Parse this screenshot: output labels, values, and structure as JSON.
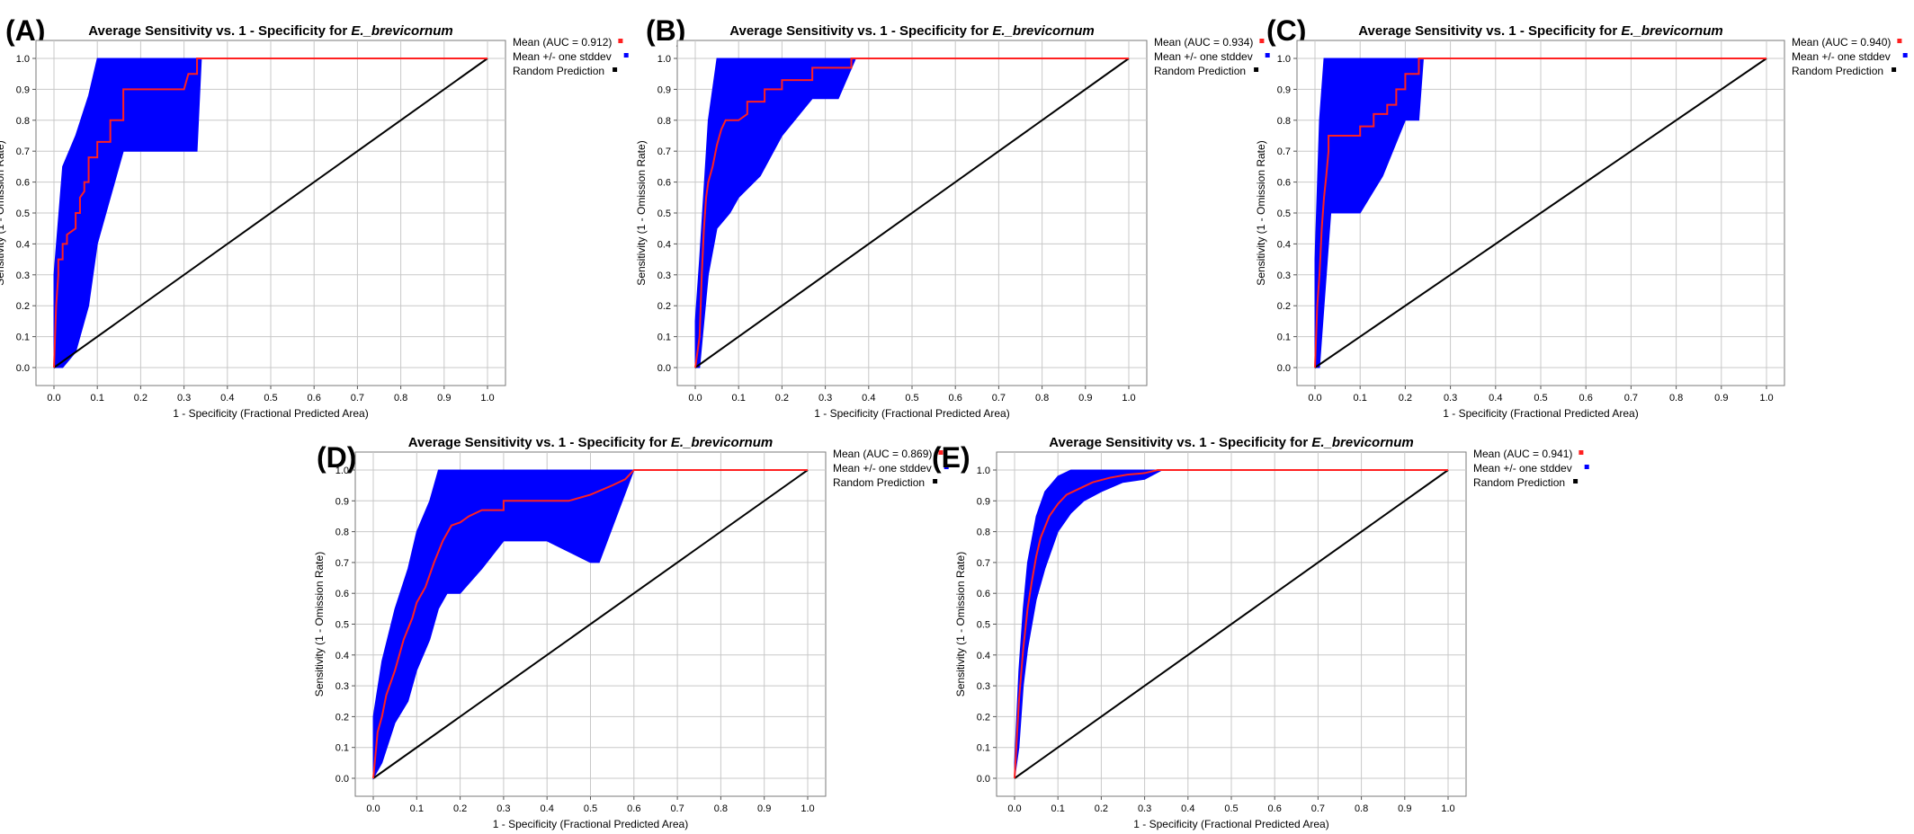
{
  "figure": {
    "background": "#ffffff",
    "colors": {
      "mean": "#ff2020",
      "band": "#0000ff",
      "random": "#000000",
      "grid": "#c8c8c8"
    },
    "panels": [
      {
        "panel_label": "(A)",
        "title_prefix": "Average Sensitivity vs. 1 - Specificity for ",
        "species": "E._brevicornum"
      },
      {
        "panel_label": "(B)",
        "title_prefix": "Average Sensitivity vs. 1 - Specificity for ",
        "species": "E._brevicornum"
      },
      {
        "panel_label": "(C)",
        "title_prefix": "Average Sensitivity vs. 1 - Specificity for ",
        "species": "E._brevicornum"
      },
      {
        "panel_label": "(D)",
        "title_prefix": "Average Sensitivity vs. 1 - Specificity for ",
        "species": "E._brevicornum"
      },
      {
        "panel_label": "(E)",
        "title_prefix": "Average Sensitivity vs. 1 - Specificity for ",
        "species": "E._brevicornum"
      }
    ]
  },
  "chart_data": [
    {
      "type": "line",
      "title": "Average Sensitivity vs. 1 - Specificity for E._brevicornum",
      "xlabel": "1 - Specificity (Fractional Predicted Area)",
      "ylabel": "Sensitivity (1 - Omission Rate)",
      "xlim": [
        0,
        1
      ],
      "ylim": [
        0,
        1
      ],
      "xticks": [
        "0.0",
        "0.1",
        "0.2",
        "0.3",
        "0.4",
        "0.5",
        "0.6",
        "0.7",
        "0.8",
        "0.9",
        "1.0"
      ],
      "yticks": [
        "0.0",
        "0.1",
        "0.2",
        "0.3",
        "0.4",
        "0.5",
        "0.6",
        "0.7",
        "0.8",
        "0.9",
        "1.0"
      ],
      "grid": true,
      "legend_position": "right",
      "series": [
        {
          "name": "Mean (AUC = 0.912)",
          "color": "#ff2020",
          "x": [
            0,
            0.005,
            0.01,
            0.01,
            0.02,
            0.02,
            0.03,
            0.03,
            0.05,
            0.05,
            0.06,
            0.06,
            0.07,
            0.07,
            0.08,
            0.08,
            0.1,
            0.1,
            0.13,
            0.13,
            0.16,
            0.16,
            0.3,
            0.31,
            0.33,
            0.33,
            1.0
          ],
          "y": [
            0,
            0.2,
            0.3,
            0.35,
            0.35,
            0.4,
            0.4,
            0.43,
            0.45,
            0.5,
            0.5,
            0.55,
            0.57,
            0.6,
            0.6,
            0.68,
            0.68,
            0.73,
            0.73,
            0.8,
            0.8,
            0.9,
            0.9,
            0.95,
            0.95,
            1.0,
            1.0
          ]
        },
        {
          "name": "Mean +/- one stddev",
          "color": "#0000ff",
          "x": [
            0,
            0.02,
            0.05,
            0.08,
            0.1,
            0.13,
            0.16,
            0.2,
            0.25,
            0.3,
            0.33,
            0.34,
            1.0
          ],
          "upper": [
            0.3,
            0.65,
            0.75,
            0.88,
            1.0,
            1.0,
            1.0,
            1.0,
            1.0,
            1.0,
            1.0,
            1.0,
            1.0
          ],
          "lower": [
            0.0,
            0.0,
            0.05,
            0.2,
            0.4,
            0.55,
            0.7,
            0.7,
            0.7,
            0.7,
            0.7,
            1.0,
            1.0
          ]
        },
        {
          "name": "Random Prediction",
          "color": "#000000",
          "x": [
            0,
            1
          ],
          "y": [
            0,
            1
          ]
        }
      ]
    },
    {
      "type": "line",
      "title": "Average Sensitivity vs. 1 - Specificity for E._brevicornum",
      "xlabel": "1 - Specificity (Fractional Predicted Area)",
      "ylabel": "Sensitivity (1 - Omission Rate)",
      "xlim": [
        0,
        1
      ],
      "ylim": [
        0,
        1
      ],
      "xticks": [
        "0.0",
        "0.1",
        "0.2",
        "0.3",
        "0.4",
        "0.5",
        "0.6",
        "0.7",
        "0.8",
        "0.9",
        "1.0"
      ],
      "yticks": [
        "0.0",
        "0.1",
        "0.2",
        "0.3",
        "0.4",
        "0.5",
        "0.6",
        "0.7",
        "0.8",
        "0.9",
        "1.0"
      ],
      "grid": true,
      "legend_position": "right",
      "series": [
        {
          "name": "Mean (AUC = 0.934)",
          "color": "#ff2020",
          "x": [
            0,
            0.01,
            0.015,
            0.02,
            0.025,
            0.03,
            0.04,
            0.05,
            0.06,
            0.07,
            0.08,
            0.1,
            0.12,
            0.12,
            0.16,
            0.16,
            0.2,
            0.2,
            0.27,
            0.27,
            0.36,
            0.36,
            1.0
          ],
          "y": [
            0,
            0.1,
            0.3,
            0.45,
            0.55,
            0.6,
            0.65,
            0.72,
            0.77,
            0.8,
            0.8,
            0.8,
            0.82,
            0.86,
            0.86,
            0.9,
            0.9,
            0.93,
            0.93,
            0.97,
            0.97,
            1.0,
            1.0
          ]
        },
        {
          "name": "Mean +/- one stddev",
          "color": "#0000ff",
          "x": [
            0,
            0.01,
            0.03,
            0.05,
            0.08,
            0.1,
            0.15,
            0.2,
            0.27,
            0.33,
            0.37,
            1.0
          ],
          "upper": [
            0.15,
            0.35,
            0.8,
            1.0,
            1.0,
            1.0,
            1.0,
            1.0,
            1.0,
            1.0,
            1.0,
            1.0
          ],
          "lower": [
            0.0,
            0.0,
            0.3,
            0.45,
            0.5,
            0.55,
            0.62,
            0.75,
            0.87,
            0.87,
            1.0,
            1.0
          ]
        },
        {
          "name": "Random Prediction",
          "color": "#000000",
          "x": [
            0,
            1
          ],
          "y": [
            0,
            1
          ]
        }
      ]
    },
    {
      "type": "line",
      "title": "Average Sensitivity vs. 1 - Specificity for E._brevicornum",
      "xlabel": "1 - Specificity (Fractional Predicted Area)",
      "ylabel": "Sensitivity (1 - Omission Rate)",
      "xlim": [
        0,
        1
      ],
      "ylim": [
        0,
        1
      ],
      "xticks": [
        "0.0",
        "0.1",
        "0.2",
        "0.3",
        "0.4",
        "0.5",
        "0.6",
        "0.7",
        "0.8",
        "0.9",
        "1.0"
      ],
      "yticks": [
        "0.0",
        "0.1",
        "0.2",
        "0.3",
        "0.4",
        "0.5",
        "0.6",
        "0.7",
        "0.8",
        "0.9",
        "1.0"
      ],
      "grid": true,
      "legend_position": "right",
      "series": [
        {
          "name": "Mean (AUC = 0.940)",
          "color": "#ff2020",
          "x": [
            0,
            0.005,
            0.01,
            0.015,
            0.02,
            0.025,
            0.03,
            0.03,
            0.1,
            0.1,
            0.13,
            0.13,
            0.16,
            0.16,
            0.18,
            0.18,
            0.2,
            0.2,
            0.23,
            0.23,
            0.24,
            1.0
          ],
          "y": [
            0,
            0.2,
            0.3,
            0.45,
            0.55,
            0.62,
            0.7,
            0.75,
            0.75,
            0.78,
            0.78,
            0.82,
            0.82,
            0.85,
            0.85,
            0.9,
            0.9,
            0.95,
            0.95,
            1.0,
            1.0,
            1.0
          ]
        },
        {
          "name": "Mean +/- one stddev",
          "color": "#0000ff",
          "x": [
            0,
            0.01,
            0.02,
            0.035,
            0.05,
            0.1,
            0.15,
            0.2,
            0.23,
            0.24,
            1.0
          ],
          "upper": [
            0.35,
            0.8,
            1.0,
            1.0,
            1.0,
            1.0,
            1.0,
            1.0,
            1.0,
            1.0,
            1.0
          ],
          "lower": [
            0.0,
            0.0,
            0.2,
            0.5,
            0.5,
            0.5,
            0.62,
            0.8,
            0.8,
            1.0,
            1.0
          ]
        },
        {
          "name": "Random Prediction",
          "color": "#000000",
          "x": [
            0,
            1
          ],
          "y": [
            0,
            1
          ]
        }
      ]
    },
    {
      "type": "line",
      "title": "Average Sensitivity vs. 1 - Specificity for E._brevicornum",
      "xlabel": "1 - Specificity (Fractional Predicted Area)",
      "ylabel": "Sensitivity (1 - Omission Rate)",
      "xlim": [
        0,
        1
      ],
      "ylim": [
        0,
        1
      ],
      "xticks": [
        "0.0",
        "0.1",
        "0.2",
        "0.3",
        "0.4",
        "0.5",
        "0.6",
        "0.7",
        "0.8",
        "0.9",
        "1.0"
      ],
      "yticks": [
        "0.0",
        "0.1",
        "0.2",
        "0.3",
        "0.4",
        "0.5",
        "0.6",
        "0.7",
        "0.8",
        "0.9",
        "1.0"
      ],
      "grid": true,
      "legend_position": "right",
      "series": [
        {
          "name": "Mean (AUC = 0.869)",
          "color": "#ff2020",
          "x": [
            0,
            0.01,
            0.02,
            0.03,
            0.05,
            0.07,
            0.09,
            0.1,
            0.12,
            0.14,
            0.16,
            0.18,
            0.2,
            0.22,
            0.25,
            0.3,
            0.3,
            0.45,
            0.5,
            0.55,
            0.58,
            0.6,
            1.0
          ],
          "y": [
            0,
            0.15,
            0.2,
            0.27,
            0.35,
            0.45,
            0.52,
            0.57,
            0.62,
            0.7,
            0.77,
            0.82,
            0.83,
            0.85,
            0.87,
            0.87,
            0.9,
            0.9,
            0.92,
            0.95,
            0.97,
            1.0,
            1.0
          ]
        },
        {
          "name": "Mean +/- one stddev",
          "color": "#0000ff",
          "x": [
            0,
            0.02,
            0.05,
            0.08,
            0.1,
            0.13,
            0.15,
            0.17,
            0.2,
            0.25,
            0.3,
            0.4,
            0.5,
            0.52,
            0.6,
            1.0
          ],
          "upper": [
            0.2,
            0.38,
            0.55,
            0.68,
            0.8,
            0.9,
            1.0,
            1.0,
            1.0,
            1.0,
            1.0,
            1.0,
            1.0,
            1.0,
            1.0,
            1.0
          ],
          "lower": [
            0.0,
            0.05,
            0.18,
            0.25,
            0.35,
            0.45,
            0.55,
            0.6,
            0.6,
            0.68,
            0.77,
            0.77,
            0.7,
            0.7,
            1.0,
            1.0
          ]
        },
        {
          "name": "Random Prediction",
          "color": "#000000",
          "x": [
            0,
            1
          ],
          "y": [
            0,
            1
          ]
        }
      ]
    },
    {
      "type": "line",
      "title": "Average Sensitivity vs. 1 - Specificity for E._brevicornum",
      "xlabel": "1 - Specificity (Fractional Predicted Area)",
      "ylabel": "Sensitivity (1 - Omission Rate)",
      "xlim": [
        0,
        1
      ],
      "ylim": [
        0,
        1
      ],
      "xticks": [
        "0.0",
        "0.1",
        "0.2",
        "0.3",
        "0.4",
        "0.5",
        "0.6",
        "0.7",
        "0.8",
        "0.9",
        "1.0"
      ],
      "yticks": [
        "0.0",
        "0.1",
        "0.2",
        "0.3",
        "0.4",
        "0.5",
        "0.6",
        "0.7",
        "0.8",
        "0.9",
        "1.0"
      ],
      "grid": true,
      "legend_position": "right",
      "series": [
        {
          "name": "Mean (AUC = 0.941)",
          "color": "#ff2020",
          "x": [
            0,
            0.01,
            0.02,
            0.03,
            0.04,
            0.05,
            0.06,
            0.08,
            0.1,
            0.12,
            0.15,
            0.18,
            0.22,
            0.26,
            0.3,
            0.33,
            1.0
          ],
          "y": [
            0,
            0.25,
            0.42,
            0.55,
            0.64,
            0.72,
            0.78,
            0.85,
            0.89,
            0.92,
            0.94,
            0.96,
            0.975,
            0.985,
            0.99,
            1.0,
            1.0
          ]
        },
        {
          "name": "Mean +/- one stddev",
          "color": "#0000ff",
          "x": [
            0,
            0.01,
            0.02,
            0.03,
            0.05,
            0.07,
            0.1,
            0.13,
            0.16,
            0.2,
            0.25,
            0.3,
            0.34,
            1.0
          ],
          "upper": [
            0.05,
            0.35,
            0.55,
            0.7,
            0.85,
            0.93,
            0.98,
            1.0,
            1.0,
            1.0,
            1.0,
            1.0,
            1.0,
            1.0
          ],
          "lower": [
            0.0,
            0.1,
            0.3,
            0.42,
            0.58,
            0.68,
            0.8,
            0.86,
            0.9,
            0.93,
            0.96,
            0.97,
            1.0,
            1.0
          ]
        },
        {
          "name": "Random Prediction",
          "color": "#000000",
          "x": [
            0,
            1
          ],
          "y": [
            0,
            1
          ]
        }
      ]
    }
  ]
}
